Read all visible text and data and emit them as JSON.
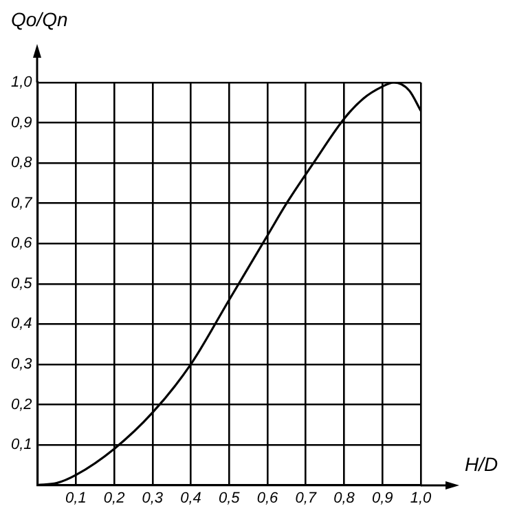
{
  "chart_data": {
    "type": "line",
    "xlabel": "H/D",
    "ylabel": "Qo/Qn",
    "x": [
      0,
      0.05,
      0.1,
      0.2,
      0.3,
      0.4,
      0.5,
      0.6,
      0.65,
      0.72,
      0.8,
      0.85,
      0.9,
      0.93,
      0.97,
      1.0
    ],
    "series": [
      {
        "color": "#000000",
        "values": [
          0,
          0.005,
          0.025,
          0.09,
          0.18,
          0.3,
          0.46,
          0.62,
          0.7,
          0.8,
          0.91,
          0.96,
          0.99,
          1.0,
          0.98,
          0.93
        ]
      }
    ],
    "xlim": [
      0,
      1.0
    ],
    "ylim": [
      0,
      1.0
    ],
    "xticks": [
      {
        "value": 0,
        "label": null
      },
      {
        "value": 0.1,
        "label": "0,1"
      },
      {
        "value": 0.2,
        "label": "0,2"
      },
      {
        "value": 0.3,
        "label": "0,3"
      },
      {
        "value": 0.4,
        "label": "0,4"
      },
      {
        "value": 0.5,
        "label": "0,5"
      },
      {
        "value": 0.6,
        "label": "0,6"
      },
      {
        "value": 0.7,
        "label": "0,7"
      },
      {
        "value": 0.8,
        "label": "0,8"
      },
      {
        "value": 0.9,
        "label": "0,9"
      },
      {
        "value": 1.0,
        "label": "1,0"
      }
    ],
    "yticks": [
      {
        "value": 0,
        "label": null
      },
      {
        "value": 0.1,
        "label": "0,1"
      },
      {
        "value": 0.2,
        "label": "0,2"
      },
      {
        "value": 0.3,
        "label": "0,3"
      },
      {
        "value": 0.4,
        "label": "0,4"
      },
      {
        "value": 0.5,
        "label": "0,5"
      },
      {
        "value": 0.6,
        "label": "0,6"
      },
      {
        "value": 0.7,
        "label": "0,7"
      },
      {
        "value": 0.8,
        "label": "0,8"
      },
      {
        "value": 0.9,
        "label": "0,9"
      },
      {
        "value": 1.0,
        "label": "1,0"
      }
    ],
    "grid": true,
    "legend": false,
    "marker": "none",
    "line_style": "solid"
  }
}
